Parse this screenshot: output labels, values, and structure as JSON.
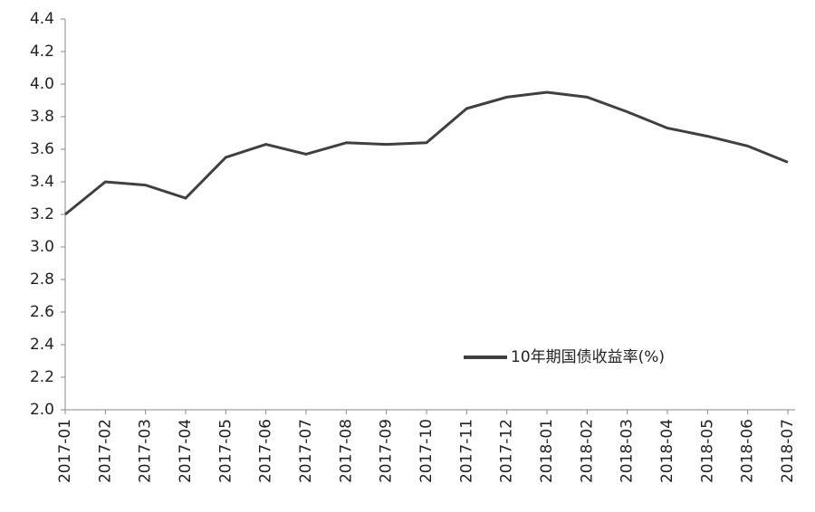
{
  "chart_data": {
    "type": "line",
    "x": [
      "2017-01",
      "2017-02",
      "2017-03",
      "2017-04",
      "2017-05",
      "2017-06",
      "2017-07",
      "2017-08",
      "2017-09",
      "2017-10",
      "2017-11",
      "2017-12",
      "2018-01",
      "2018-02",
      "2018-03",
      "2018-04",
      "2018-05",
      "2018-06",
      "2018-07"
    ],
    "series": [
      {
        "name": "10年期国债收益率(%)",
        "color": "#404040",
        "values": [
          3.2,
          3.4,
          3.38,
          3.3,
          3.55,
          3.63,
          3.57,
          3.64,
          3.63,
          3.64,
          3.85,
          3.92,
          3.95,
          3.92,
          3.83,
          3.73,
          3.68,
          3.62,
          3.52
        ]
      }
    ],
    "ylim": [
      2.0,
      4.4
    ],
    "yticks": [
      {
        "value": 2.0,
        "label": "2.0"
      },
      {
        "value": 2.2,
        "label": "2.2"
      },
      {
        "value": 2.4,
        "label": "2.4"
      },
      {
        "value": 2.6,
        "label": "2.6"
      },
      {
        "value": 2.8,
        "label": "2.8"
      },
      {
        "value": 3.0,
        "label": "3.0"
      },
      {
        "value": 3.2,
        "label": "3.2"
      },
      {
        "value": 3.4,
        "label": "3.4"
      },
      {
        "value": 3.6,
        "label": "3.6"
      },
      {
        "value": 3.8,
        "label": "3.8"
      },
      {
        "value": 4.0,
        "label": "4.0"
      },
      {
        "value": 4.2,
        "label": "4.2"
      },
      {
        "value": 4.4,
        "label": "4.4"
      }
    ],
    "grid": false,
    "legend": "lower-right"
  }
}
